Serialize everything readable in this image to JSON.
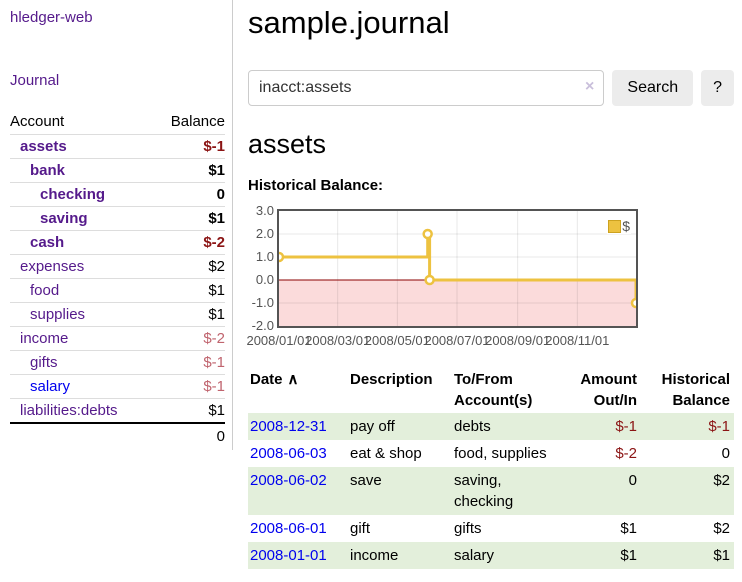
{
  "app": {
    "brand": "hledger-web",
    "nav_journal": "Journal"
  },
  "colors": {
    "accent_purple": "#551a8b",
    "link_blue": "#0000ee",
    "negative_dark": "#8b1414",
    "negative_light": "#c0646e",
    "row_stripe_green": "#e3efdb",
    "series_gold": "#edc240",
    "negative_region_fill": "#fbdbdb",
    "zero_line": "#8b0000",
    "chart_border": "#545454"
  },
  "sidebar": {
    "columns": {
      "account": "Account",
      "balance": "Balance"
    },
    "accounts": [
      {
        "name": "assets",
        "depth": 1,
        "balance": "$-1",
        "bold": true
      },
      {
        "name": "bank",
        "depth": 2,
        "balance": "$1",
        "bold": true
      },
      {
        "name": "checking",
        "depth": 3,
        "balance": "0",
        "bold": true
      },
      {
        "name": "saving",
        "depth": 3,
        "balance": "$1",
        "bold": true
      },
      {
        "name": "cash",
        "depth": 2,
        "balance": "$-2",
        "bold": true
      },
      {
        "name": "expenses",
        "depth": 1,
        "balance": "$2",
        "bold": false
      },
      {
        "name": "food",
        "depth": 2,
        "balance": "$1",
        "bold": false
      },
      {
        "name": "supplies",
        "depth": 2,
        "balance": "$1",
        "bold": false
      },
      {
        "name": "income",
        "depth": 1,
        "balance": "$-2",
        "bold": false
      },
      {
        "name": "gifts",
        "depth": 2,
        "balance": "$-1",
        "bold": false
      },
      {
        "name": "salary",
        "depth": 2,
        "balance": "$-1",
        "bold": false,
        "unvisited": true
      },
      {
        "name": "liabilities:debts",
        "depth": 1,
        "balance": "$1",
        "bold": false
      }
    ],
    "total": "0"
  },
  "header": {
    "title": "sample.journal"
  },
  "search": {
    "value": "inacct:assets",
    "clear_icon": "×",
    "button": "Search",
    "help_button": "?"
  },
  "account_page": {
    "title": "assets",
    "chart_label": "Historical Balance:"
  },
  "chart_data": {
    "type": "line",
    "step": true,
    "title": "Historical Balance",
    "legend": "$",
    "legend_position": "top-right",
    "grid": true,
    "ylim": [
      -2,
      3
    ],
    "yticks": [
      "3.0",
      "2.0",
      "1.0",
      "0.0",
      "-1.0",
      "-2.0"
    ],
    "xrange": [
      "2008-01-01",
      "2008-12-31"
    ],
    "xticks": [
      {
        "label": "2008/01/01",
        "date": "2008-01-01"
      },
      {
        "label": "2008/03/01",
        "date": "2008-03-01"
      },
      {
        "label": "2008/05/01",
        "date": "2008-05-01"
      },
      {
        "label": "2008/07/01",
        "date": "2008-07-01"
      },
      {
        "label": "2008/09/01",
        "date": "2008-09-01"
      },
      {
        "label": "2008/11/01",
        "date": "2008-11-01"
      }
    ],
    "series": [
      {
        "name": "$",
        "color": "#edc240",
        "points": [
          [
            "2008-01-01",
            1
          ],
          [
            "2008-06-01",
            2
          ],
          [
            "2008-06-03",
            0
          ],
          [
            "2008-12-31",
            -1
          ]
        ]
      }
    ]
  },
  "register": {
    "columns": [
      "Date",
      "Description",
      "To/From Account(s)",
      "Amount Out/In",
      "Historical Balance"
    ],
    "sort_icon": "∧",
    "rows": [
      {
        "date": "2008-12-31",
        "description": "pay off",
        "accounts": "debts",
        "amount": "$-1",
        "balance": "$-1"
      },
      {
        "date": "2008-06-03",
        "description": "eat & shop",
        "accounts": "food, supplies",
        "amount": "$-2",
        "balance": "0"
      },
      {
        "date": "2008-06-02",
        "description": "save",
        "accounts": "saving, checking",
        "amount": "0",
        "balance": "$2"
      },
      {
        "date": "2008-06-01",
        "description": "gift",
        "accounts": "gifts",
        "amount": "$1",
        "balance": "$2"
      },
      {
        "date": "2008-01-01",
        "description": "income",
        "accounts": "salary",
        "amount": "$1",
        "balance": "$1"
      }
    ]
  }
}
